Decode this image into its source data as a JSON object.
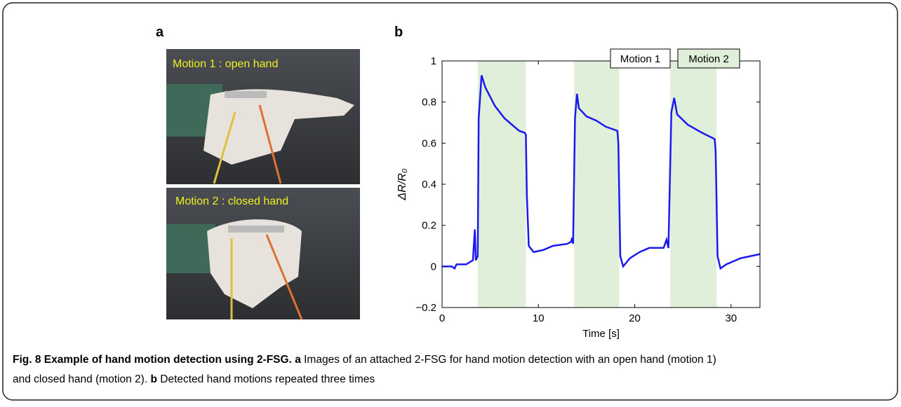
{
  "panels": {
    "a": "a",
    "b": "b"
  },
  "photos": [
    "Motion 1 : open hand",
    "Motion 2 : closed hand"
  ],
  "chart_data": {
    "type": "line",
    "x_label": "Time [s]",
    "y_label": "ΔR/R₀",
    "xlim": [
      0,
      33
    ],
    "ylim": [
      -0.2,
      1
    ],
    "xticks": [
      0,
      10,
      20,
      30
    ],
    "yticks": [
      {
        "value": -0.2,
        "label": "−0.2"
      },
      0,
      0.2,
      0.4,
      0.6,
      0.8,
      1
    ],
    "legend": [
      {
        "label": "Motion 1",
        "color": "#ffffff"
      },
      {
        "label": "Motion 2",
        "color": "#e0efd9"
      }
    ],
    "shaded": {
      "color": "#e0efd9",
      "spans": [
        [
          3.7,
          8.7
        ],
        [
          13.7,
          18.4
        ],
        [
          23.7,
          28.5
        ]
      ]
    },
    "x": [
      0,
      1,
      1.3,
      1.5,
      2.5,
      3.2,
      3.4,
      3.5,
      3.7,
      3.8,
      4.1,
      4.5,
      5.5,
      6.5,
      7,
      8,
      8.6,
      8.7,
      8.8,
      9,
      9.5,
      10.5,
      11.5,
      13,
      13.4,
      13.5,
      13.6,
      13.8,
      14,
      14.2,
      15,
      16,
      17,
      18.2,
      18.3,
      18.5,
      18.8,
      19.5,
      20.5,
      21.5,
      23,
      23.3,
      23.5,
      23.8,
      24.1,
      24.4,
      25.5,
      27,
      28.3,
      28.4,
      28.6,
      28.9,
      29.5,
      31,
      33
    ],
    "series": [
      {
        "color": "#1a1aee",
        "values": [
          0,
          0,
          -0.01,
          0.01,
          0.01,
          0.03,
          0.18,
          0.03,
          0.05,
          0.72,
          0.93,
          0.87,
          0.78,
          0.72,
          0.7,
          0.66,
          0.65,
          0.64,
          0.35,
          0.1,
          0.07,
          0.08,
          0.1,
          0.11,
          0.12,
          0.14,
          0.11,
          0.72,
          0.84,
          0.77,
          0.73,
          0.71,
          0.68,
          0.66,
          0.6,
          0.05,
          0,
          0.04,
          0.07,
          0.09,
          0.09,
          0.13,
          0.09,
          0.75,
          0.82,
          0.74,
          0.69,
          0.65,
          0.62,
          0.56,
          0.05,
          -0.01,
          0.01,
          0.04,
          0.06
        ]
      }
    ]
  },
  "caption": {
    "lines": [
      {
        "title": "Fig. 8 Example of hand motion detection using 2-FSG.",
        "label": "a",
        "text": "Images of an attached 2-FSG for hand motion detection with an open hand (motion 1)"
      },
      {
        "text0": "and closed hand (motion 2).",
        "label": "b",
        "text": "Detected hand motions repeated three times"
      }
    ]
  }
}
